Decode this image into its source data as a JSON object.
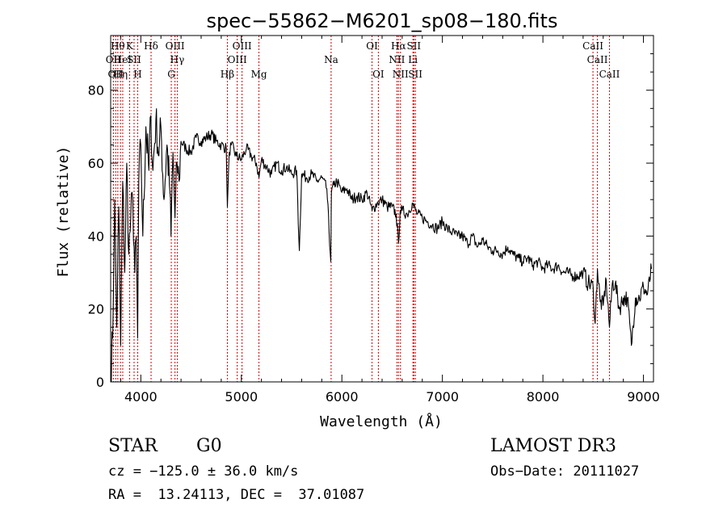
{
  "chart_data": {
    "type": "line",
    "title": "spec−55862−M6201_sp08−180.fits",
    "xlabel": "Wavelength (Å)",
    "ylabel": "Flux (relative)",
    "xlim": [
      3700,
      9100
    ],
    "ylim": [
      0,
      95
    ],
    "x_ticks": [
      {
        "value": 4000,
        "label": "4000"
      },
      {
        "value": 5000,
        "label": "5000"
      },
      {
        "value": 6000,
        "label": "6000"
      },
      {
        "value": 7000,
        "label": "7000"
      },
      {
        "value": 8000,
        "label": "8000"
      },
      {
        "value": 9000,
        "label": "9000"
      }
    ],
    "y_ticks": [
      {
        "value": 0,
        "label": "0"
      },
      {
        "value": 20,
        "label": "20"
      },
      {
        "value": 40,
        "label": "40"
      },
      {
        "value": 60,
        "label": "60"
      },
      {
        "value": 80,
        "label": "80"
      }
    ],
    "series": [
      {
        "name": "flux",
        "x": [
          3700,
          3720,
          3740,
          3760,
          3780,
          3800,
          3820,
          3840,
          3860,
          3880,
          3900,
          3920,
          3940,
          3955,
          3968,
          3980,
          4000,
          4020,
          4050,
          4080,
          4100,
          4120,
          4150,
          4180,
          4200,
          4230,
          4260,
          4290,
          4300,
          4320,
          4340,
          4360,
          4380,
          4400,
          4450,
          4500,
          4550,
          4600,
          4650,
          4700,
          4750,
          4800,
          4850,
          4861,
          4880,
          4900,
          4950,
          5000,
          5050,
          5100,
          5150,
          5175,
          5200,
          5250,
          5300,
          5350,
          5400,
          5450,
          5500,
          5550,
          5577,
          5600,
          5650,
          5700,
          5750,
          5800,
          5850,
          5890,
          5896,
          5920,
          5950,
          6000,
          6050,
          6100,
          6150,
          6200,
          6250,
          6300,
          6350,
          6400,
          6450,
          6500,
          6540,
          6563,
          6580,
          6600,
          6650,
          6700,
          6750,
          6800,
          6850,
          6900,
          6950,
          7000,
          7050,
          7100,
          7150,
          7200,
          7250,
          7300,
          7350,
          7400,
          7450,
          7500,
          7550,
          7600,
          7650,
          7700,
          7750,
          7800,
          7850,
          7900,
          7950,
          8000,
          8050,
          8100,
          8150,
          8200,
          8250,
          8300,
          8350,
          8400,
          8450,
          8500,
          8520,
          8542,
          8570,
          8600,
          8630,
          8662,
          8690,
          8720,
          8760,
          8800,
          8840,
          8880,
          8920,
          8960,
          9000,
          9040,
          9080
        ],
        "y": [
          2,
          12,
          50,
          15,
          48,
          10,
          55,
          30,
          60,
          35,
          45,
          50,
          30,
          40,
          12,
          55,
          65,
          40,
          70,
          58,
          73,
          58,
          72,
          62,
          70,
          50,
          65,
          52,
          40,
          63,
          45,
          60,
          55,
          66,
          64,
          63,
          67,
          66,
          67,
          68,
          66,
          65,
          64,
          48,
          63,
          65,
          62,
          61,
          64,
          62,
          60,
          56,
          61,
          59,
          57,
          60,
          58,
          59,
          57,
          58,
          36,
          57,
          56,
          57,
          55,
          56,
          53,
          33,
          52,
          54,
          55,
          52,
          53,
          50,
          51,
          50,
          52,
          47,
          49,
          50,
          48,
          48,
          46,
          38,
          47,
          47,
          46,
          49,
          46,
          45,
          44,
          43,
          42,
          44,
          42,
          41,
          40,
          40,
          38,
          40,
          37,
          39,
          37,
          36,
          36,
          35,
          37,
          35,
          34,
          33,
          34,
          32,
          33,
          31,
          32,
          31,
          32,
          30,
          30,
          29,
          29,
          30,
          27,
          26,
          16,
          31,
          22,
          21,
          28,
          15,
          27,
          27,
          20,
          23,
          23,
          10,
          23,
          23,
          26,
          24,
          31
        ],
        "color": "#000000"
      }
    ],
    "reference_lines": {
      "color": "#cc0000",
      "lines": [
        {
          "wave": 3727,
          "label": "OII",
          "row": 2
        },
        {
          "wave": 3750,
          "label": "OII",
          "row": 3
        },
        {
          "wave": 3771,
          "label": "Hθ",
          "row": 1
        },
        {
          "wave": 3798,
          "label": "Hη",
          "row": 3
        },
        {
          "wave": 3820,
          "label": "HeI",
          "row": 2
        },
        {
          "wave": 3889,
          "label": "K",
          "row": 1
        },
        {
          "wave": 3933,
          "label": "SII",
          "row": 2
        },
        {
          "wave": 3969,
          "label": "H",
          "row": 3
        },
        {
          "wave": 4102,
          "label": "Hδ",
          "row": 1
        },
        {
          "wave": 4303,
          "label": "G",
          "row": 3
        },
        {
          "wave": 4340,
          "label": "OIII",
          "row": 1
        },
        {
          "wave": 4363,
          "label": "Hγ",
          "row": 2
        },
        {
          "wave": 4861,
          "label": "Hβ",
          "row": 3
        },
        {
          "wave": 4959,
          "label": "OIII",
          "row": 2
        },
        {
          "wave": 5007,
          "label": "OIII",
          "row": 1
        },
        {
          "wave": 5175,
          "label": "Mg",
          "row": 3
        },
        {
          "wave": 5893,
          "label": "Na",
          "row": 2
        },
        {
          "wave": 6300,
          "label": "OI",
          "row": 1
        },
        {
          "wave": 6363,
          "label": "OI",
          "row": 3
        },
        {
          "wave": 6548,
          "label": "NII",
          "row": 2
        },
        {
          "wave": 6563,
          "label": "Hα",
          "row": 1
        },
        {
          "wave": 6583,
          "label": "NII",
          "row": 3
        },
        {
          "wave": 6707,
          "label": "Li",
          "row": 2
        },
        {
          "wave": 6716,
          "label": "SII",
          "row": 1
        },
        {
          "wave": 6731,
          "label": "SII",
          "row": 3
        },
        {
          "wave": 8498,
          "label": "CaII",
          "row": 1
        },
        {
          "wave": 8542,
          "label": "CaII",
          "row": 2
        },
        {
          "wave": 8662,
          "label": "CaII",
          "row": 3
        }
      ]
    }
  },
  "info": {
    "object_class": "STAR",
    "subclass": "G0",
    "survey": "LAMOST DR3",
    "cz": "cz = −125.0 ± 36.0 km/s",
    "obs_date": "Obs−Date: 20111027",
    "coords": "RA =  13.24113, DEC =  37.01087"
  }
}
